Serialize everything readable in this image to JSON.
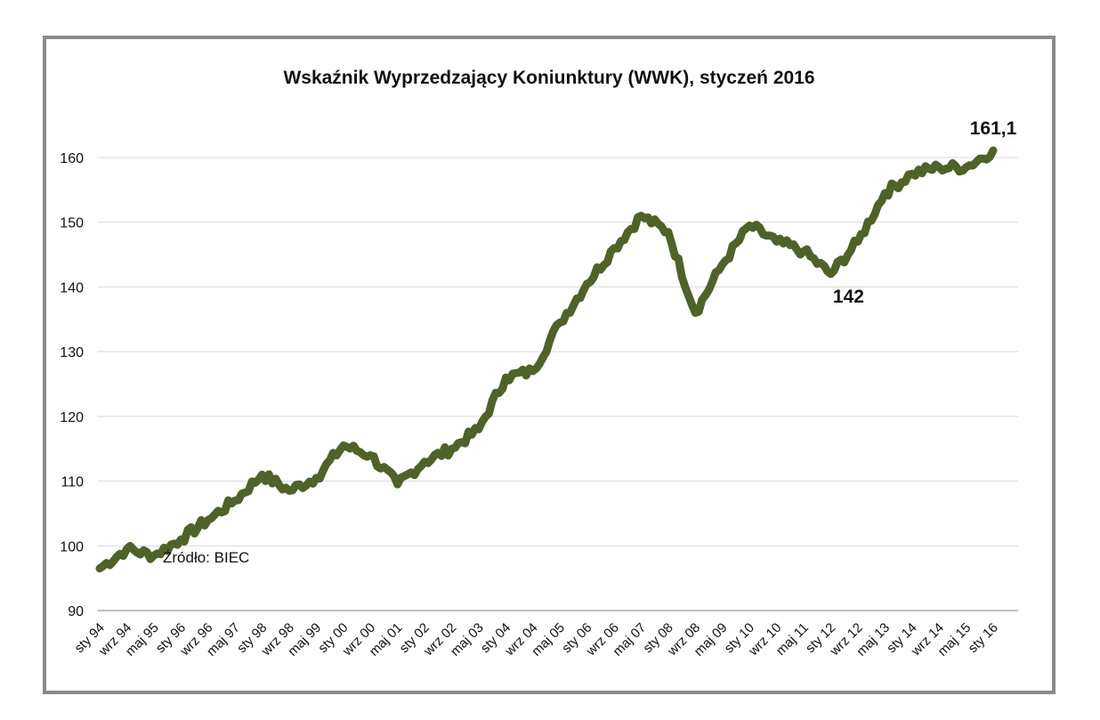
{
  "chart_data": {
    "type": "line",
    "title": "Wskaźnik Wyprzedzający Koniunktury (WWK),  styczeń 2016",
    "xlabel": "",
    "ylabel": "",
    "ylim": [
      90,
      165
    ],
    "y_ticks": [
      "90",
      "100",
      "110",
      "120",
      "130",
      "140",
      "150",
      "160"
    ],
    "x_tick_labels": [
      "sty 94",
      "wrz 94",
      "maj 95",
      "sty 96",
      "wrz 96",
      "maj 97",
      "sty 98",
      "wrz 98",
      "maj 99",
      "sty 00",
      "wrz 00",
      "maj 01",
      "sty 02",
      "wrz 02",
      "maj 03",
      "sty 04",
      "wrz 04",
      "maj 05",
      "sty 06",
      "wrz 06",
      "maj 07",
      "sty 08",
      "wrz 08",
      "maj 09",
      "sty 10",
      "wrz 10",
      "maj 11",
      "sty 12",
      "wrz 12",
      "maj 13",
      "sty 14",
      "wrz 14",
      "maj 15",
      "sty 16"
    ],
    "grid": true,
    "legend": "none",
    "line_color": "#4f6228",
    "series": [
      {
        "points": [
          [
            "sty 94",
            96.5
          ],
          [
            "wrz 94",
            99.5
          ],
          [
            "maj 95",
            98.5
          ],
          [
            "sty 96",
            101.0
          ],
          [
            "wrz 96",
            104.0
          ],
          [
            "maj 97",
            107.0
          ],
          [
            "sty 98",
            111.0
          ],
          [
            "wrz 98",
            108.5
          ],
          [
            "maj 99",
            110.5
          ],
          [
            "sty 00",
            115.5
          ],
          [
            "wrz 00",
            114.0
          ],
          [
            "maj 01",
            109.5
          ],
          [
            "sty 02",
            113.0
          ],
          [
            "wrz 02",
            115.0
          ],
          [
            "maj 03",
            118.0
          ],
          [
            "sty 04",
            126.0
          ],
          [
            "wrz 04",
            127.0
          ],
          [
            "maj 05",
            134.5
          ],
          [
            "sty 06",
            140.5
          ],
          [
            "wrz 06",
            146.0
          ],
          [
            "maj 07",
            151.0
          ],
          [
            "sty 08",
            148.5
          ],
          [
            "wrz 08",
            136.0
          ],
          [
            "maj 09",
            143.5
          ],
          [
            "sty 10",
            149.5
          ],
          [
            "wrz 10",
            147.0
          ],
          [
            "maj 11",
            145.5
          ],
          [
            "sty 12",
            142.0
          ],
          [
            "wrz 12",
            147.0
          ],
          [
            "maj 13",
            154.5
          ],
          [
            "sty 14",
            157.5
          ],
          [
            "wrz 14",
            158.5
          ],
          [
            "maj 15",
            158.5
          ],
          [
            "sty 16",
            161.1
          ]
        ]
      }
    ],
    "annotations": [
      {
        "text": "161,1",
        "at": "sty 16"
      },
      {
        "text": "142",
        "at": "sty 12"
      }
    ],
    "source_note": "Źródło: BIEC"
  }
}
